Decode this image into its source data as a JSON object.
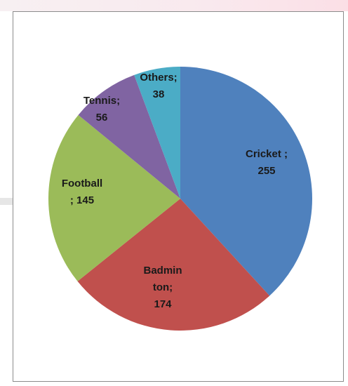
{
  "chart_data": {
    "type": "pie",
    "categories": [
      "Cricket",
      "Badminton",
      "Football",
      "Tennis",
      "Others"
    ],
    "values": [
      255,
      174,
      145,
      56,
      38
    ],
    "labels": [
      [
        "Cricket ;",
        "255"
      ],
      [
        "Badmin",
        "ton;",
        "174"
      ],
      [
        "Football",
        "; 145"
      ],
      [
        "Tennis;",
        "56"
      ],
      [
        "Others;",
        "38"
      ]
    ],
    "colors": [
      "#4f81bd",
      "#c0504d",
      "#9bbb59",
      "#8064a2",
      "#4bacc6"
    ],
    "start_angle_deg": 0,
    "direction": "clockwise",
    "title": "",
    "legend": "none"
  }
}
